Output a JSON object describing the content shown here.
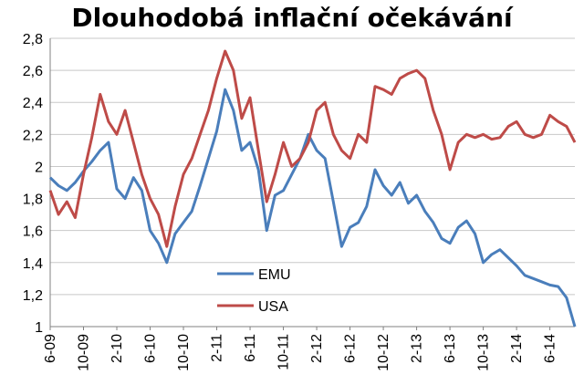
{
  "chart_data": {
    "type": "line",
    "title": "Dlouhodobá inflační očekávání",
    "xlabel": "",
    "ylabel": "",
    "ylim": [
      1,
      2.8
    ],
    "yticks": [
      "1",
      "1,2",
      "1,4",
      "1,6",
      "1,8",
      "2",
      "2,2",
      "2,4",
      "2,6",
      "2,8"
    ],
    "x_range": [
      "6-09",
      "9-14"
    ],
    "xticks": [
      "6-09",
      "10-09",
      "2-10",
      "6-10",
      "10-10",
      "2-11",
      "6-11",
      "10-11",
      "2-12",
      "6-12",
      "10-12",
      "2-13",
      "6-13",
      "10-13",
      "2-14",
      "6-14"
    ],
    "grid": "horizontal",
    "legend_position": "center-bottom",
    "series": [
      {
        "name": "EMU",
        "color": "#4a7ebb",
        "points": [
          [
            "6-09",
            1.93
          ],
          [
            "7-09",
            1.88
          ],
          [
            "8-09",
            1.85
          ],
          [
            "9-09",
            1.9
          ],
          [
            "10-09",
            1.97
          ],
          [
            "11-09",
            2.03
          ],
          [
            "12-09",
            2.1
          ],
          [
            "1-10",
            2.15
          ],
          [
            "2-10",
            1.86
          ],
          [
            "3-10",
            1.8
          ],
          [
            "4-10",
            1.93
          ],
          [
            "5-10",
            1.85
          ],
          [
            "6-10",
            1.6
          ],
          [
            "7-10",
            1.52
          ],
          [
            "8-10",
            1.4
          ],
          [
            "9-10",
            1.58
          ],
          [
            "10-10",
            1.65
          ],
          [
            "11-10",
            1.72
          ],
          [
            "12-10",
            1.88
          ],
          [
            "1-11",
            2.05
          ],
          [
            "2-11",
            2.22
          ],
          [
            "3-11",
            2.48
          ],
          [
            "4-11",
            2.35
          ],
          [
            "5-11",
            2.1
          ],
          [
            "6-11",
            2.15
          ],
          [
            "7-11",
            1.98
          ],
          [
            "8-11",
            1.6
          ],
          [
            "9-11",
            1.82
          ],
          [
            "10-11",
            1.85
          ],
          [
            "11-11",
            1.95
          ],
          [
            "12-11",
            2.05
          ],
          [
            "1-12",
            2.2
          ],
          [
            "2-12",
            2.1
          ],
          [
            "3-12",
            2.05
          ],
          [
            "4-12",
            1.78
          ],
          [
            "5-12",
            1.5
          ],
          [
            "6-12",
            1.62
          ],
          [
            "7-12",
            1.65
          ],
          [
            "8-12",
            1.75
          ],
          [
            "9-12",
            1.98
          ],
          [
            "10-12",
            1.88
          ],
          [
            "11-12",
            1.82
          ],
          [
            "12-12",
            1.9
          ],
          [
            "1-13",
            1.77
          ],
          [
            "2-13",
            1.82
          ],
          [
            "3-13",
            1.72
          ],
          [
            "4-13",
            1.65
          ],
          [
            "5-13",
            1.55
          ],
          [
            "6-13",
            1.52
          ],
          [
            "7-13",
            1.62
          ],
          [
            "8-13",
            1.66
          ],
          [
            "9-13",
            1.58
          ],
          [
            "10-13",
            1.4
          ],
          [
            "11-13",
            1.45
          ],
          [
            "12-13",
            1.48
          ],
          [
            "1-14",
            1.43
          ],
          [
            "2-14",
            1.38
          ],
          [
            "3-14",
            1.32
          ],
          [
            "4-14",
            1.3
          ],
          [
            "5-14",
            1.28
          ],
          [
            "6-14",
            1.26
          ],
          [
            "7-14",
            1.25
          ],
          [
            "8-14",
            1.18
          ],
          [
            "9-14",
            1.0
          ]
        ]
      },
      {
        "name": "USA",
        "color": "#be4b48",
        "points": [
          [
            "6-09",
            1.85
          ],
          [
            "7-09",
            1.7
          ],
          [
            "8-09",
            1.78
          ],
          [
            "9-09",
            1.68
          ],
          [
            "10-09",
            1.95
          ],
          [
            "11-09",
            2.18
          ],
          [
            "12-09",
            2.45
          ],
          [
            "1-10",
            2.28
          ],
          [
            "2-10",
            2.2
          ],
          [
            "3-10",
            2.35
          ],
          [
            "4-10",
            2.15
          ],
          [
            "5-10",
            1.95
          ],
          [
            "6-10",
            1.8
          ],
          [
            "7-10",
            1.7
          ],
          [
            "8-10",
            1.5
          ],
          [
            "9-10",
            1.75
          ],
          [
            "10-10",
            1.95
          ],
          [
            "11-10",
            2.05
          ],
          [
            "12-10",
            2.2
          ],
          [
            "1-11",
            2.35
          ],
          [
            "2-11",
            2.55
          ],
          [
            "3-11",
            2.72
          ],
          [
            "4-11",
            2.6
          ],
          [
            "5-11",
            2.3
          ],
          [
            "6-11",
            2.43
          ],
          [
            "7-11",
            2.1
          ],
          [
            "8-11",
            1.78
          ],
          [
            "9-11",
            1.95
          ],
          [
            "10-11",
            2.15
          ],
          [
            "11-11",
            2.0
          ],
          [
            "12-11",
            2.05
          ],
          [
            "1-12",
            2.15
          ],
          [
            "2-12",
            2.35
          ],
          [
            "3-12",
            2.4
          ],
          [
            "4-12",
            2.2
          ],
          [
            "5-12",
            2.1
          ],
          [
            "6-12",
            2.05
          ],
          [
            "7-12",
            2.2
          ],
          [
            "8-12",
            2.15
          ],
          [
            "9-12",
            2.5
          ],
          [
            "10-12",
            2.48
          ],
          [
            "11-12",
            2.45
          ],
          [
            "12-12",
            2.55
          ],
          [
            "1-13",
            2.58
          ],
          [
            "2-13",
            2.6
          ],
          [
            "3-13",
            2.55
          ],
          [
            "4-13",
            2.35
          ],
          [
            "5-13",
            2.2
          ],
          [
            "6-13",
            1.98
          ],
          [
            "7-13",
            2.15
          ],
          [
            "8-13",
            2.2
          ],
          [
            "9-13",
            2.18
          ],
          [
            "10-13",
            2.2
          ],
          [
            "11-13",
            2.17
          ],
          [
            "12-13",
            2.18
          ],
          [
            "1-14",
            2.25
          ],
          [
            "2-14",
            2.28
          ],
          [
            "3-14",
            2.2
          ],
          [
            "4-14",
            2.18
          ],
          [
            "5-14",
            2.2
          ],
          [
            "6-14",
            2.32
          ],
          [
            "7-14",
            2.28
          ],
          [
            "8-14",
            2.25
          ],
          [
            "9-14",
            2.15
          ]
        ]
      }
    ]
  }
}
